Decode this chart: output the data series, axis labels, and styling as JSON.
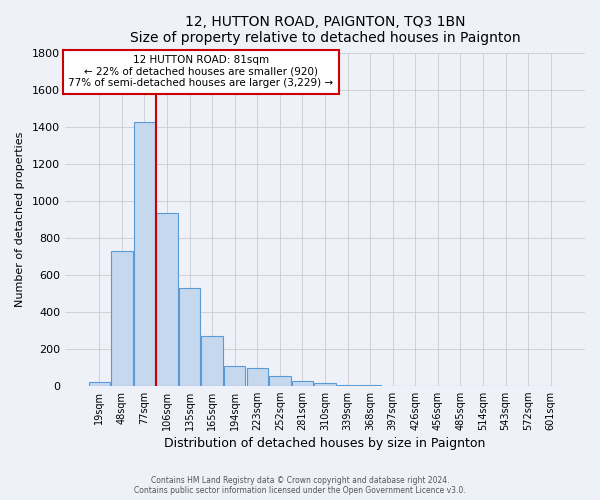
{
  "title": "12, HUTTON ROAD, PAIGNTON, TQ3 1BN",
  "subtitle": "Size of property relative to detached houses in Paignton",
  "xlabel": "Distribution of detached houses by size in Paignton",
  "ylabel": "Number of detached properties",
  "bar_labels": [
    "19sqm",
    "48sqm",
    "77sqm",
    "106sqm",
    "135sqm",
    "165sqm",
    "194sqm",
    "223sqm",
    "252sqm",
    "281sqm",
    "310sqm",
    "339sqm",
    "368sqm",
    "397sqm",
    "426sqm",
    "456sqm",
    "485sqm",
    "514sqm",
    "543sqm",
    "572sqm",
    "601sqm"
  ],
  "bar_values": [
    20,
    730,
    1430,
    935,
    530,
    270,
    105,
    95,
    50,
    28,
    15,
    5,
    2,
    1,
    1,
    1,
    1,
    1,
    0,
    0,
    0
  ],
  "bar_color": "#c5d8ee",
  "bar_edge_color": "#5b9bd5",
  "annotation_title": "12 HUTTON ROAD: 81sqm",
  "annotation_line1": "← 22% of detached houses are smaller (920)",
  "annotation_line2": "77% of semi-detached houses are larger (3,229) →",
  "annotation_box_color": "#ffffff",
  "annotation_box_edge": "#cc0000",
  "vline_color": "#cc0000",
  "vline_pos": 2.5,
  "ylim": [
    0,
    1800
  ],
  "yticks": [
    0,
    200,
    400,
    600,
    800,
    1000,
    1200,
    1400,
    1600,
    1800
  ],
  "bg_color": "#eef2f8",
  "grid_color": "#cccccc",
  "footer_line1": "Contains HM Land Registry data © Crown copyright and database right 2024.",
  "footer_line2": "Contains public sector information licensed under the Open Government Licence v3.0."
}
